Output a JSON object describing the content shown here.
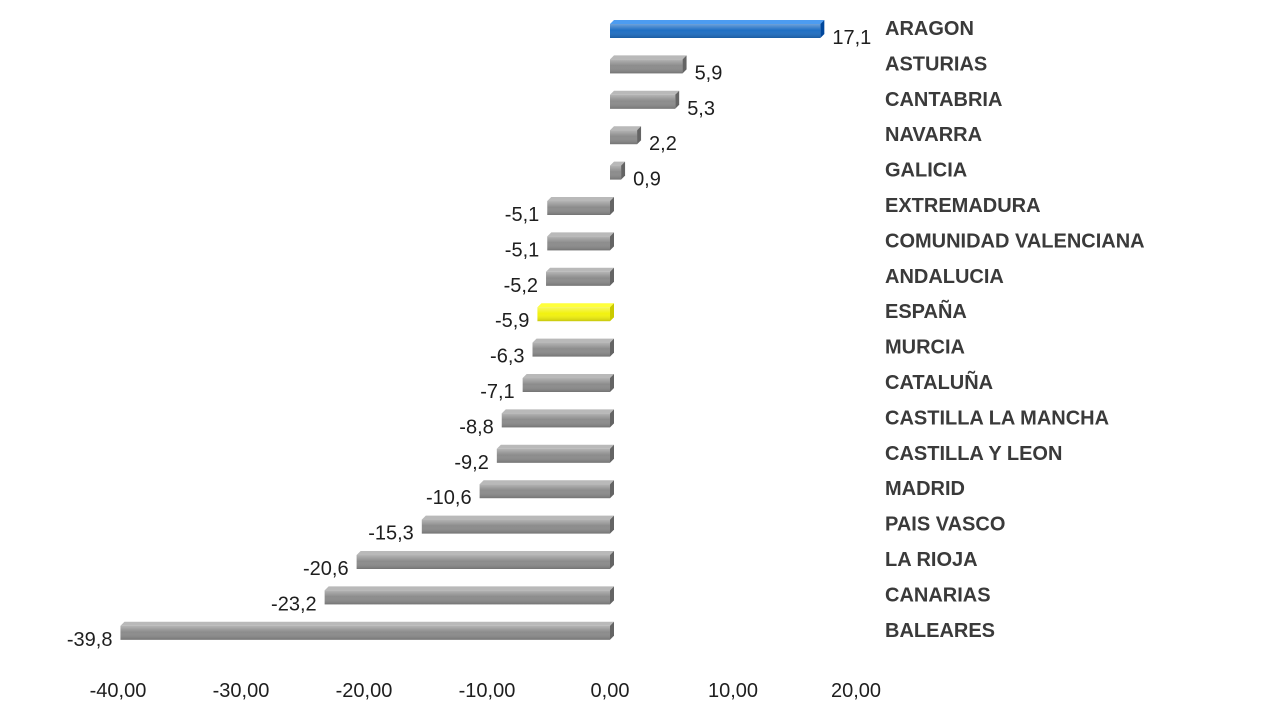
{
  "chart_data": {
    "type": "bar",
    "orientation": "horizontal",
    "title": "",
    "xlabel": "",
    "ylabel": "",
    "xlim": [
      -40,
      20
    ],
    "x_ticks": [
      "-40,00",
      "-30,00",
      "-20,00",
      "-10,00",
      "0,00",
      "10,00",
      "20,00"
    ],
    "grid": false,
    "legend": "none",
    "colors": {
      "default": "#8c8c8c",
      "highlight_region": "#1f6fc4",
      "highlight_national": "#f2f20f"
    },
    "bars": [
      {
        "category": "ARAGON",
        "value": 17.1,
        "label": "17,1",
        "color": "highlight_region"
      },
      {
        "category": "ASTURIAS",
        "value": 5.9,
        "label": "5,9",
        "color": "default"
      },
      {
        "category": "CANTABRIA",
        "value": 5.3,
        "label": "5,3",
        "color": "default"
      },
      {
        "category": "NAVARRA",
        "value": 2.2,
        "label": "2,2",
        "color": "default"
      },
      {
        "category": "GALICIA",
        "value": 0.9,
        "label": "0,9",
        "color": "default"
      },
      {
        "category": "EXTREMADURA",
        "value": -5.1,
        "label": "-5,1",
        "color": "default"
      },
      {
        "category": "COMUNIDAD VALENCIANA",
        "value": -5.1,
        "label": "-5,1",
        "color": "default"
      },
      {
        "category": "ANDALUCIA",
        "value": -5.2,
        "label": "-5,2",
        "color": "default"
      },
      {
        "category": "ESPAÑA",
        "value": -5.9,
        "label": "-5,9",
        "color": "highlight_national"
      },
      {
        "category": "MURCIA",
        "value": -6.3,
        "label": "-6,3",
        "color": "default"
      },
      {
        "category": "CATALUÑA",
        "value": -7.1,
        "label": "-7,1",
        "color": "default"
      },
      {
        "category": "CASTILLA LA MANCHA",
        "value": -8.8,
        "label": "-8,8",
        "color": "default"
      },
      {
        "category": "CASTILLA Y LEON",
        "value": -9.2,
        "label": "-9,2",
        "color": "default"
      },
      {
        "category": "MADRID",
        "value": -10.6,
        "label": "-10,6",
        "color": "default"
      },
      {
        "category": "PAIS VASCO",
        "value": -15.3,
        "label": "-15,3",
        "color": "default"
      },
      {
        "category": "LA RIOJA",
        "value": -20.6,
        "label": "-20,6",
        "color": "default"
      },
      {
        "category": "CANARIAS",
        "value": -23.2,
        "label": "-23,2",
        "color": "default"
      },
      {
        "category": "BALEARES",
        "value": -39.8,
        "label": "-39,8",
        "color": "default"
      }
    ]
  }
}
